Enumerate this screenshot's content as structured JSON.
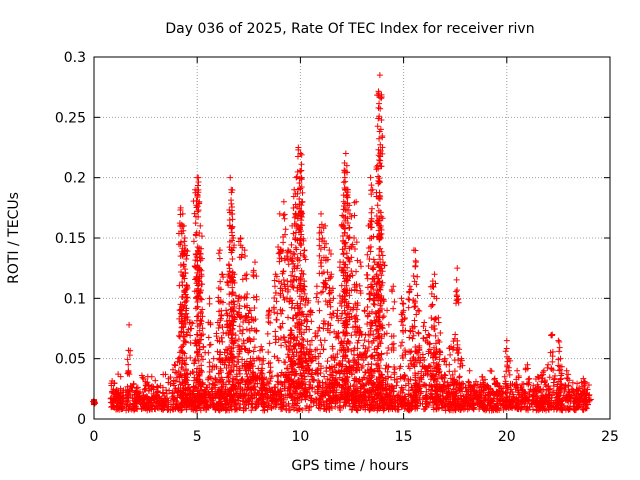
{
  "chart_data": {
    "type": "scatter",
    "title": "Day 036 of 2025, Rate Of TEC Index for receiver rivn",
    "xlabel": "GPS time / hours",
    "ylabel": "ROTI / TECUs",
    "xlim": [
      0,
      25
    ],
    "ylim": [
      0,
      0.3
    ],
    "x_ticks": [
      "0",
      "5",
      "10",
      "15",
      "20",
      "25"
    ],
    "y_ticks": [
      "0",
      "0.05",
      "0.1",
      "0.15",
      "0.2",
      "0.25",
      "0.3"
    ],
    "grid": true,
    "marker": "+",
    "marker_color": "#ff0000",
    "baseline_level": 0.015,
    "series": [
      {
        "x": [
          0.0,
          0.05,
          1.7,
          2.8,
          3.9,
          4.2,
          4.3,
          4.35,
          4.4,
          4.45,
          4.5,
          4.2,
          4.1,
          4.7,
          4.9,
          5.0,
          5.05,
          5.1,
          5.15,
          5.2,
          5.3,
          5.6,
          5.8,
          6.0,
          6.1,
          6.2,
          6.4,
          6.5,
          6.6,
          6.65,
          6.7,
          6.75,
          6.8,
          7.0,
          7.1,
          7.3,
          7.4,
          7.5,
          7.6,
          7.7,
          7.8,
          8.1,
          8.2,
          8.5,
          8.8,
          9.0,
          9.2,
          9.4,
          9.5,
          9.55,
          9.6,
          9.7,
          9.8,
          9.9,
          10.0,
          10.05,
          10.1,
          10.2,
          10.3,
          10.5,
          10.8,
          11.0,
          11.2,
          11.4,
          11.5,
          11.6,
          11.8,
          12.0,
          12.1,
          12.15,
          12.2,
          12.25,
          12.3,
          12.4,
          12.6,
          12.7,
          12.9,
          13.1,
          13.3,
          13.4,
          13.5,
          13.6,
          13.7,
          13.75,
          13.8,
          13.85,
          13.9,
          14.0,
          14.2,
          14.5,
          14.9,
          15.0,
          15.3,
          15.5,
          15.6,
          15.7,
          16.0,
          16.2,
          16.4,
          16.5,
          16.6,
          16.7,
          17.0,
          17.3,
          17.5,
          17.6,
          17.8,
          18.2,
          18.8,
          19.2,
          19.5,
          19.9,
          20.0,
          20.1,
          20.5,
          21.0,
          21.5,
          21.8,
          22.0,
          22.2,
          22.5,
          22.6,
          22.9,
          23.2,
          23.5,
          23.8,
          24.0
        ],
        "y": [
          0.014,
          0.013,
          0.078,
          0.035,
          0.045,
          0.175,
          0.17,
          0.16,
          0.15,
          0.14,
          0.11,
          0.09,
          0.05,
          0.08,
          0.19,
          0.2,
          0.2,
          0.18,
          0.16,
          0.12,
          0.06,
          0.1,
          0.05,
          0.08,
          0.14,
          0.12,
          0.09,
          0.12,
          0.2,
          0.19,
          0.17,
          0.15,
          0.12,
          0.1,
          0.15,
          0.14,
          0.12,
          0.08,
          0.09,
          0.05,
          0.13,
          0.06,
          0.05,
          0.09,
          0.12,
          0.17,
          0.18,
          0.14,
          0.1,
          0.07,
          0.16,
          0.19,
          0.2,
          0.225,
          0.22,
          0.2,
          0.18,
          0.14,
          0.1,
          0.09,
          0.11,
          0.17,
          0.16,
          0.14,
          0.12,
          0.1,
          0.09,
          0.16,
          0.18,
          0.2,
          0.22,
          0.21,
          0.19,
          0.17,
          0.15,
          0.18,
          0.13,
          0.09,
          0.16,
          0.2,
          0.19,
          0.13,
          0.12,
          0.21,
          0.27,
          0.285,
          0.24,
          0.13,
          0.09,
          0.11,
          0.1,
          0.09,
          0.11,
          0.14,
          0.13,
          0.09,
          0.08,
          0.07,
          0.11,
          0.12,
          0.1,
          0.08,
          0.05,
          0.06,
          0.07,
          0.125,
          0.05,
          0.04,
          0.035,
          0.04,
          0.03,
          0.035,
          0.065,
          0.05,
          0.04,
          0.045,
          0.035,
          0.04,
          0.045,
          0.07,
          0.065,
          0.05,
          0.04,
          0.03,
          0.025,
          0.03,
          0.02
        ]
      }
    ]
  }
}
